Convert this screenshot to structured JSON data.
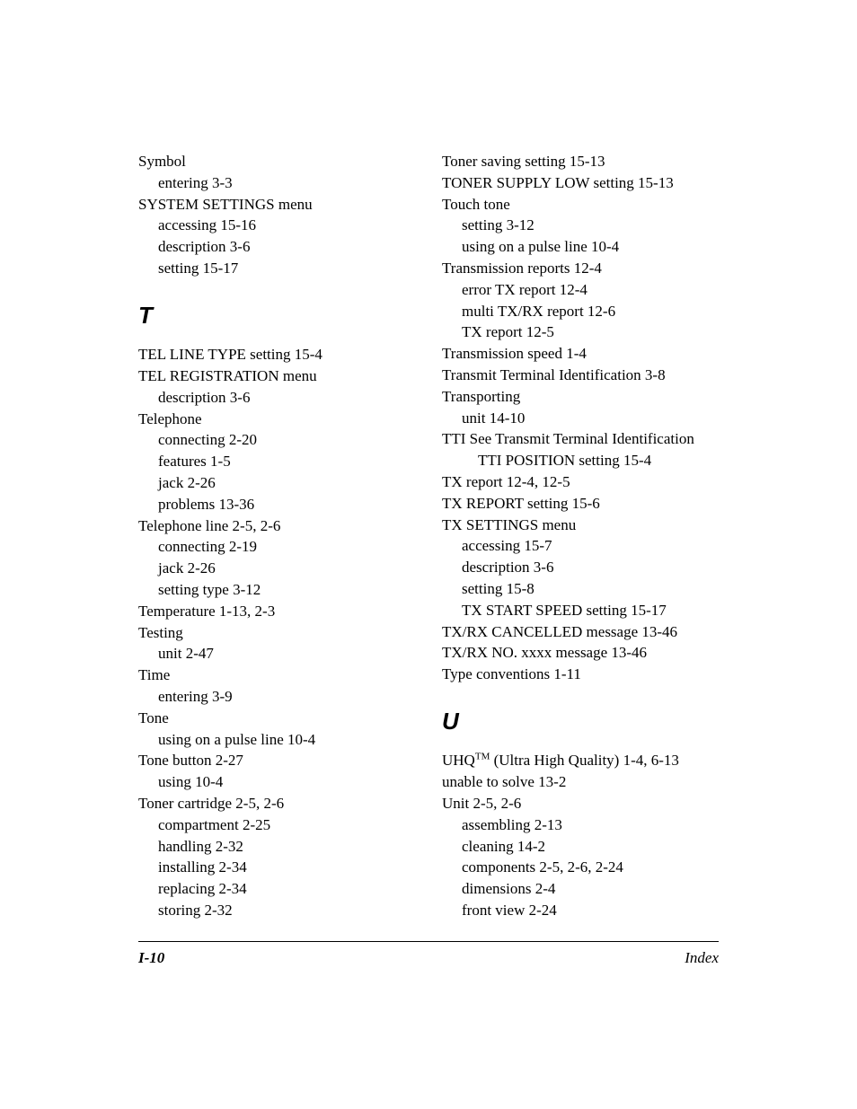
{
  "left": {
    "lines": [
      {
        "t": "Symbol",
        "cls": "entry"
      },
      {
        "t": "entering   3-3",
        "cls": "sub"
      },
      {
        "t": "SYSTEM SETTINGS menu",
        "cls": "entry"
      },
      {
        "t": "accessing   15-16",
        "cls": "sub"
      },
      {
        "t": "description   3-6",
        "cls": "sub"
      },
      {
        "t": "setting   15-17",
        "cls": "sub"
      }
    ],
    "heading": "T",
    "lines2": [
      {
        "t": "TEL LINE TYPE setting   15-4",
        "cls": "entry"
      },
      {
        "t": "TEL REGISTRATION menu",
        "cls": "entry"
      },
      {
        "t": "description   3-6",
        "cls": "sub"
      },
      {
        "t": "Telephone",
        "cls": "entry"
      },
      {
        "t": "connecting   2-20",
        "cls": "sub"
      },
      {
        "t": "features   1-5",
        "cls": "sub"
      },
      {
        "t": "jack   2-26",
        "cls": "sub"
      },
      {
        "t": "problems   13-36",
        "cls": "sub"
      },
      {
        "t": "Telephone line   2-5, 2-6",
        "cls": "entry"
      },
      {
        "t": "connecting   2-19",
        "cls": "sub"
      },
      {
        "t": "jack   2-26",
        "cls": "sub"
      },
      {
        "t": "setting type   3-12",
        "cls": "sub"
      },
      {
        "t": "Temperature   1-13, 2-3",
        "cls": "entry"
      },
      {
        "t": "Testing",
        "cls": "entry"
      },
      {
        "t": "unit   2-47",
        "cls": "sub"
      },
      {
        "t": "Time",
        "cls": "entry"
      },
      {
        "t": "entering   3-9",
        "cls": "sub"
      },
      {
        "t": "Tone",
        "cls": "entry"
      },
      {
        "t": "using on a pulse line   10-4",
        "cls": "sub"
      },
      {
        "t": "Tone button 2-27",
        "cls": "entry"
      },
      {
        "t": "using   10-4",
        "cls": "sub"
      },
      {
        "t": "Toner cartridge   2-5, 2-6",
        "cls": "entry"
      },
      {
        "t": "compartment   2-25",
        "cls": "sub"
      },
      {
        "t": "handling   2-32",
        "cls": "sub"
      },
      {
        "t": "installing   2-34",
        "cls": "sub"
      },
      {
        "t": "replacing   2-34",
        "cls": "sub"
      },
      {
        "t": "storing   2-32",
        "cls": "sub"
      }
    ]
  },
  "right": {
    "lines": [
      {
        "t": "Toner saving setting   15-13",
        "cls": "entry"
      },
      {
        "t": "TONER SUPPLY LOW setting   15-13",
        "cls": "entry"
      },
      {
        "t": "Touch tone",
        "cls": "entry"
      },
      {
        "t": "setting   3-12",
        "cls": "sub"
      },
      {
        "t": "using on a pulse line   10-4",
        "cls": "sub"
      },
      {
        "t": "Transmission reports   12-4",
        "cls": "entry"
      },
      {
        "t": "error TX report   12-4",
        "cls": "sub"
      },
      {
        "t": "multi TX/RX report   12-6",
        "cls": "sub"
      },
      {
        "t": "TX report   12-5",
        "cls": "sub"
      },
      {
        "t": "Transmission speed   1-4",
        "cls": "entry"
      },
      {
        "t": "Transmit Terminal Identification   3-8",
        "cls": "entry"
      },
      {
        "t": "Transporting",
        "cls": "entry"
      },
      {
        "t": "unit   14-10",
        "cls": "sub"
      },
      {
        "t": "TTI See Transmit Terminal Identification",
        "cls": "entry"
      },
      {
        "t": "TTI POSITION setting   15-4",
        "cls": "sub2"
      },
      {
        "t": "TX report   12-4, 12-5",
        "cls": "entry"
      },
      {
        "t": "TX REPORT setting   15-6",
        "cls": "entry"
      },
      {
        "t": "TX SETTINGS menu",
        "cls": "entry"
      },
      {
        "t": "accessing   15-7",
        "cls": "sub"
      },
      {
        "t": "description   3-6",
        "cls": "sub"
      },
      {
        "t": "setting   15-8",
        "cls": "sub"
      },
      {
        "t": "TX START SPEED setting   15-17",
        "cls": "sub"
      },
      {
        "t": "TX/RX CANCELLED message   13-46",
        "cls": "entry"
      },
      {
        "t": "TX/RX NO. xxxx message   13-46",
        "cls": "entry"
      },
      {
        "t": "Type conventions   1-11",
        "cls": "entry"
      }
    ],
    "heading": "U",
    "uhq_prefix": "UHQ",
    "uhq_tm": "TM",
    "uhq_suffix": " (Ultra High Quality)   1-4, 6-13",
    "lines2": [
      {
        "t": "unable to solve   13-2",
        "cls": "entry"
      },
      {
        "t": "Unit   2-5, 2-6",
        "cls": "entry"
      },
      {
        "t": "assembling   2-13",
        "cls": "sub"
      },
      {
        "t": "cleaning   14-2",
        "cls": "sub"
      },
      {
        "t": "components   2-5, 2-6, 2-24",
        "cls": "sub"
      },
      {
        "t": "dimensions   2-4",
        "cls": "sub"
      },
      {
        "t": "front view   2-24",
        "cls": "sub"
      }
    ]
  },
  "footer": {
    "left": "I-10",
    "right": "Index"
  }
}
